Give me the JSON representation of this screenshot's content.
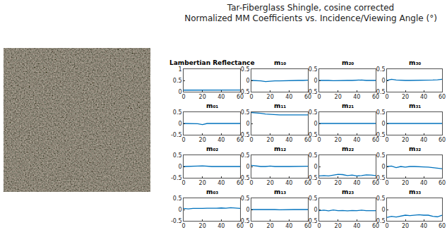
{
  "title": [
    "Tar-Fiberglass Shingle, cosine corrected",
    "Normalized MM Coefficients vs. Incidence/Viewing Angle (°)"
  ],
  "chart_data": [
    {
      "type": "line",
      "title": "Lambertian Reflectance",
      "color": "#0072bd",
      "x": [
        0,
        5,
        10,
        15,
        20,
        25,
        30,
        35,
        40,
        45,
        50,
        55,
        60
      ],
      "values": [
        0.07,
        0.07,
        0.07,
        0.07,
        0.075,
        0.075,
        0.075,
        0.075,
        0.075,
        0.075,
        0.07,
        0.07,
        0.075
      ],
      "xlim": [
        0,
        60
      ],
      "ylim": [
        0,
        1
      ],
      "xticks": [
        0,
        20,
        40,
        60
      ],
      "yticks": [
        0,
        0.5,
        1
      ]
    },
    {
      "type": "line",
      "title": "m₁₀",
      "color": "#0072bd",
      "x": [
        0,
        5,
        10,
        15,
        20,
        25,
        30,
        35,
        40,
        45,
        50,
        55,
        60
      ],
      "values": [
        0,
        0,
        -0.02,
        -0.05,
        -0.03,
        -0.02,
        -0.02,
        -0.01,
        -0.01,
        0,
        0,
        0,
        0.01
      ],
      "xlim": [
        0,
        60
      ],
      "ylim": [
        -0.5,
        0.5
      ],
      "xticks": [
        0,
        20,
        40,
        60
      ],
      "yticks": [
        -0.5,
        0,
        0.5
      ]
    },
    {
      "type": "line",
      "title": "m₂₀",
      "color": "#0072bd",
      "x": [
        0,
        5,
        10,
        15,
        20,
        25,
        30,
        35,
        40,
        45,
        50,
        55,
        60
      ],
      "values": [
        0,
        0.01,
        0,
        -0.01,
        0,
        0.01,
        0,
        0,
        0.01,
        0.02,
        0,
        -0.01,
        0
      ],
      "xlim": [
        0,
        60
      ],
      "ylim": [
        -0.5,
        0.5
      ],
      "xticks": [
        0,
        20,
        40,
        60
      ],
      "yticks": [
        -0.5,
        0,
        0.5
      ]
    },
    {
      "type": "line",
      "title": "m₃₀",
      "color": "#0072bd",
      "x": [
        0,
        5,
        10,
        15,
        20,
        25,
        30,
        35,
        40,
        45,
        50,
        55,
        60
      ],
      "values": [
        0,
        0.05,
        0.02,
        0,
        0,
        0,
        0,
        0,
        0,
        0,
        0.02,
        0.03,
        0.05
      ],
      "xlim": [
        0,
        60
      ],
      "ylim": [
        -0.5,
        0.5
      ],
      "xticks": [
        0,
        20,
        40,
        60
      ],
      "yticks": [
        -0.5,
        0,
        0.5
      ]
    },
    {
      "type": "line",
      "title": "m₀₁",
      "color": "#0072bd",
      "x": [
        0,
        5,
        10,
        15,
        20,
        25,
        30,
        35,
        40,
        45,
        50,
        55,
        60
      ],
      "values": [
        0,
        0,
        0,
        -0.01,
        -0.05,
        0,
        0,
        -0.01,
        0,
        0,
        -0.01,
        0,
        0
      ],
      "xlim": [
        0,
        60
      ],
      "ylim": [
        -0.5,
        0.5
      ],
      "xticks": [
        0,
        20,
        40,
        60
      ],
      "yticks": [
        -0.5,
        0,
        0.5
      ]
    },
    {
      "type": "line",
      "title": "m₁₁",
      "color": "#0072bd",
      "x": [
        0,
        5,
        10,
        15,
        20,
        25,
        30,
        35,
        40,
        45,
        50,
        55,
        60
      ],
      "values": [
        0.48,
        0.47,
        0.45,
        0.42,
        0.4,
        0.39,
        0.38,
        0.38,
        0.38,
        0.38,
        0.38,
        0.38,
        0.38
      ],
      "xlim": [
        0,
        60
      ],
      "ylim": [
        -0.5,
        0.5
      ],
      "xticks": [
        0,
        20,
        40,
        60
      ],
      "yticks": [
        -0.5,
        0,
        0.5
      ]
    },
    {
      "type": "line",
      "title": "m₂₁",
      "color": "#0072bd",
      "x": [
        0,
        5,
        10,
        15,
        20,
        25,
        30,
        35,
        40,
        45,
        50,
        55,
        60
      ],
      "values": [
        0,
        0,
        -0.01,
        0,
        0.01,
        0,
        0,
        -0.01,
        0,
        0,
        0,
        0,
        0
      ],
      "xlim": [
        0,
        60
      ],
      "ylim": [
        -0.5,
        0.5
      ],
      "xticks": [
        0,
        20,
        40,
        60
      ],
      "yticks": [
        -0.5,
        0,
        0.5
      ]
    },
    {
      "type": "line",
      "title": "m₃₁",
      "color": "#0072bd",
      "x": [
        0,
        5,
        10,
        15,
        20,
        25,
        30,
        35,
        40,
        45,
        50,
        55,
        60
      ],
      "values": [
        0,
        0,
        0.01,
        0,
        0,
        0,
        0.01,
        0,
        0,
        0,
        0,
        0,
        0
      ],
      "xlim": [
        0,
        60
      ],
      "ylim": [
        -0.5,
        0.5
      ],
      "xticks": [
        0,
        20,
        40,
        60
      ],
      "yticks": [
        -0.5,
        0,
        0.5
      ]
    },
    {
      "type": "line",
      "title": "m₀₂",
      "color": "#0072bd",
      "x": [
        0,
        5,
        10,
        15,
        20,
        25,
        30,
        35,
        40,
        45,
        50,
        55,
        60
      ],
      "values": [
        0,
        0,
        0.01,
        0.02,
        0.03,
        0.01,
        0,
        0,
        0.01,
        0,
        0,
        0,
        0
      ],
      "xlim": [
        0,
        60
      ],
      "ylim": [
        -0.5,
        0.5
      ],
      "xticks": [
        0,
        20,
        40,
        60
      ],
      "yticks": [
        -0.5,
        0,
        0.5
      ]
    },
    {
      "type": "line",
      "title": "m₁₂",
      "color": "#0072bd",
      "x": [
        0,
        5,
        10,
        15,
        20,
        25,
        30,
        35,
        40,
        45,
        50,
        55,
        60
      ],
      "values": [
        0.05,
        0.02,
        0,
        0,
        0.02,
        0,
        -0.01,
        0,
        0,
        0,
        0,
        0,
        0.01
      ],
      "xlim": [
        0,
        60
      ],
      "ylim": [
        -0.5,
        0.5
      ],
      "xticks": [
        0,
        20,
        40,
        60
      ],
      "yticks": [
        -0.5,
        0,
        0.5
      ]
    },
    {
      "type": "line",
      "title": "m₂₂",
      "color": "#0072bd",
      "x": [
        0,
        5,
        10,
        15,
        20,
        25,
        30,
        35,
        40,
        45,
        50,
        55,
        60
      ],
      "values": [
        -0.42,
        -0.4,
        -0.42,
        -0.38,
        -0.35,
        -0.36,
        -0.4,
        -0.38,
        -0.42,
        -0.4,
        -0.37,
        -0.38,
        -0.4
      ],
      "xlim": [
        0,
        60
      ],
      "ylim": [
        -0.5,
        0.5
      ],
      "xticks": [
        0,
        20,
        40,
        60
      ],
      "yticks": [
        -0.5,
        0,
        0.5
      ]
    },
    {
      "type": "line",
      "title": "m₃₂",
      "color": "#0072bd",
      "x": [
        0,
        5,
        10,
        15,
        20,
        25,
        30,
        35,
        40,
        45,
        50,
        55,
        60
      ],
      "values": [
        0,
        0.02,
        -0.05,
        0,
        -0.03,
        0,
        0,
        0,
        -0.02,
        -0.03,
        -0.05,
        -0.08,
        -0.1
      ],
      "xlim": [
        0,
        60
      ],
      "ylim": [
        -0.5,
        0.5
      ],
      "xticks": [
        0,
        20,
        40,
        60
      ],
      "yticks": [
        -0.5,
        0,
        0.5
      ]
    },
    {
      "type": "line",
      "title": "m₀₃",
      "color": "#0072bd",
      "x": [
        0,
        5,
        10,
        15,
        20,
        25,
        30,
        35,
        40,
        45,
        50,
        55,
        60
      ],
      "values": [
        0.05,
        0.03,
        0.05,
        0.04,
        0.05,
        0.06,
        0.05,
        0.06,
        0.07,
        0.06,
        0.08,
        0.06,
        0.05
      ],
      "xlim": [
        0,
        60
      ],
      "ylim": [
        -0.5,
        0.5
      ],
      "xticks": [
        0,
        20,
        40,
        60
      ],
      "yticks": [
        -0.5,
        0,
        0.5
      ]
    },
    {
      "type": "line",
      "title": "m₁₃",
      "color": "#0072bd",
      "x": [
        0,
        5,
        10,
        15,
        20,
        25,
        30,
        35,
        40,
        45,
        50,
        55,
        60
      ],
      "values": [
        0,
        0,
        0.02,
        0,
        0,
        0,
        -0.01,
        0,
        0,
        0,
        0,
        0.01,
        0
      ],
      "xlim": [
        0,
        60
      ],
      "ylim": [
        -0.5,
        0.5
      ],
      "xticks": [
        0,
        20,
        40,
        60
      ],
      "yticks": [
        -0.5,
        0,
        0.5
      ]
    },
    {
      "type": "line",
      "title": "m₂₃",
      "color": "#0072bd",
      "x": [
        0,
        5,
        10,
        15,
        20,
        25,
        30,
        35,
        40,
        45,
        50,
        55,
        60
      ],
      "values": [
        -0.05,
        -0.03,
        -0.06,
        -0.02,
        -0.05,
        -0.04,
        -0.06,
        -0.04,
        -0.05,
        -0.03,
        -0.05,
        -0.04,
        -0.05
      ],
      "xlim": [
        0,
        60
      ],
      "ylim": [
        -0.5,
        0.5
      ],
      "xticks": [
        0,
        20,
        40,
        60
      ],
      "yticks": [
        -0.5,
        0,
        0.5
      ]
    },
    {
      "type": "line",
      "title": "m₃₃",
      "color": "#0072bd",
      "x": [
        0,
        5,
        10,
        15,
        20,
        25,
        30,
        35,
        40,
        45,
        50,
        55,
        60
      ],
      "values": [
        -0.35,
        -0.3,
        -0.33,
        -0.28,
        -0.25,
        -0.27,
        -0.25,
        -0.23,
        -0.25,
        -0.25,
        -0.3,
        -0.32,
        -0.25
      ],
      "xlim": [
        0,
        60
      ],
      "ylim": [
        -0.5,
        0.5
      ],
      "xticks": [
        0,
        20,
        40,
        60
      ],
      "yticks": [
        -0.5,
        0,
        0.5
      ]
    }
  ]
}
